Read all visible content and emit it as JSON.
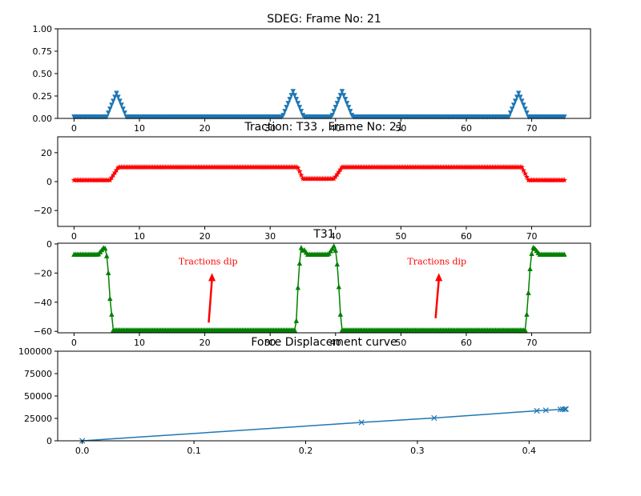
{
  "figure": {
    "background": "#ffffff"
  },
  "chart_data": [
    {
      "type": "line",
      "title": "SDEG: Frame No: 21",
      "xlabel": "",
      "ylabel": "",
      "xlim": [
        -2.5,
        79
      ],
      "ylim": [
        0,
        1
      ],
      "xticks": [
        0,
        10,
        20,
        30,
        40,
        50,
        60,
        70
      ],
      "yticks": [
        0.0,
        0.25,
        0.5,
        0.75,
        1.0
      ],
      "ytick_labels": [
        "0.00",
        "0.25",
        "0.50",
        "0.75",
        "1.00"
      ],
      "grid": false,
      "series": [
        {
          "color": "#1f77b4",
          "marker": "triangle-down",
          "x_range": [
            0,
            75
          ],
          "x_step": 0.25,
          "baseline": 0.015,
          "peaks": [
            {
              "center": 6.5,
              "height": 0.28,
              "halfwidth": 1.5
            },
            {
              "center": 33.5,
              "height": 0.3,
              "halfwidth": 1.6
            },
            {
              "center": 41.0,
              "height": 0.3,
              "halfwidth": 1.6
            },
            {
              "center": 68.0,
              "height": 0.28,
              "halfwidth": 1.5
            }
          ]
        }
      ]
    },
    {
      "type": "line",
      "title": "Traction: T33 , Frame No: 21",
      "xlabel": "",
      "ylabel": "",
      "xlim": [
        -2.5,
        79
      ],
      "ylim": [
        -31,
        31
      ],
      "xticks": [
        0,
        10,
        20,
        30,
        40,
        50,
        60,
        70
      ],
      "yticks": [
        -20,
        0,
        20
      ],
      "ytick_labels": [
        "−20",
        "0",
        "20"
      ],
      "grid": false,
      "series": [
        {
          "color": "#ff0000",
          "marker": "star",
          "x_range": [
            0,
            75
          ],
          "x_step": 0.25,
          "levels": [
            {
              "from": 0,
              "to": 5.5,
              "y": 1
            },
            {
              "from": 6.8,
              "to": 34.2,
              "y": 10
            },
            {
              "from": 35.0,
              "to": 39.8,
              "y": 2
            },
            {
              "from": 41.0,
              "to": 68.5,
              "y": 10
            },
            {
              "from": 69.5,
              "to": 75,
              "y": 1
            }
          ]
        }
      ]
    },
    {
      "type": "line",
      "title": "T31",
      "xlabel": "",
      "ylabel": "",
      "xlim": [
        -2.5,
        79
      ],
      "ylim": [
        -61,
        0.5
      ],
      "xticks": [
        0,
        10,
        20,
        30,
        40,
        50,
        60,
        70
      ],
      "yticks": [
        -60,
        -40,
        -20,
        0
      ],
      "ytick_labels": [
        "−60",
        "−40",
        "−20",
        "0"
      ],
      "grid": false,
      "series": [
        {
          "color": "#008000",
          "marker": "triangle-up",
          "x_range": [
            0,
            75
          ],
          "x_step": 0.25,
          "levels": [
            {
              "from": 0,
              "to": 4.8,
              "y": -7
            },
            {
              "from": 6.0,
              "to": 34.0,
              "y": -59
            },
            {
              "from": 35.2,
              "to": 39.8,
              "y": -7
            },
            {
              "from": 41.0,
              "to": 69.0,
              "y": -59
            },
            {
              "from": 70.2,
              "to": 75,
              "y": -7
            }
          ],
          "spikes": [
            {
              "x": 4.6,
              "y": -2
            },
            {
              "x": 34.8,
              "y": -1
            },
            {
              "x": 39.8,
              "y": -1
            },
            {
              "x": 70.3,
              "y": -2
            }
          ]
        }
      ],
      "annotations": [
        {
          "text": "Tractions dip",
          "text_x": 20.5,
          "text_y": -14,
          "arrow_from": [
            20.6,
            -54
          ],
          "arrow_to": [
            21.1,
            -20
          ],
          "color": "#ff0000"
        },
        {
          "text": "Tractions dip",
          "text_x": 55.5,
          "text_y": -14,
          "arrow_from": [
            55.3,
            -51
          ],
          "arrow_to": [
            55.8,
            -20
          ],
          "color": "#ff0000"
        }
      ]
    },
    {
      "type": "line",
      "title": "Force Displacement curve",
      "xlabel": "",
      "ylabel": "",
      "xlim": [
        -0.022,
        0.455
      ],
      "ylim": [
        0,
        100000
      ],
      "xticks": [
        0.0,
        0.1,
        0.2,
        0.3,
        0.4
      ],
      "xtick_labels": [
        "0.0",
        "0.1",
        "0.2",
        "0.3",
        "0.4"
      ],
      "yticks": [
        0,
        25000,
        50000,
        75000,
        100000
      ],
      "ytick_labels": [
        "0",
        "25000",
        "50000",
        "75000",
        "100000"
      ],
      "grid": false,
      "series": [
        {
          "color": "#1f77b4",
          "marker": "x",
          "x": [
            0.0,
            0.25,
            0.315,
            0.407,
            0.415,
            0.428,
            0.43,
            0.432,
            0.433
          ],
          "y": [
            0,
            20500,
            25500,
            33500,
            34000,
            35000,
            35200,
            35300,
            35400
          ]
        }
      ]
    }
  ]
}
